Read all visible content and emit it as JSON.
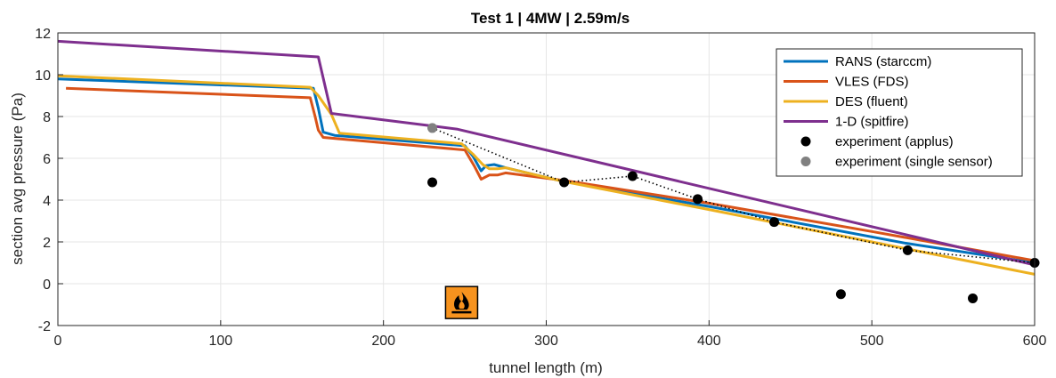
{
  "chart_data": {
    "type": "line",
    "title": "Test 1 | 4MW | 2.59m/s",
    "xlabel": "tunnel length (m)",
    "ylabel": "section avg pressure (Pa)",
    "xlim": [
      0,
      600
    ],
    "ylim": [
      -2,
      12
    ],
    "xticks": [
      "0",
      "100",
      "200",
      "300",
      "400",
      "500",
      "600"
    ],
    "yticks": [
      "-2",
      "0",
      "2",
      "4",
      "6",
      "8",
      "10",
      "12"
    ],
    "grid": true,
    "legend_position": "top-right",
    "fire_icon": {
      "x": 248,
      "y": -0.9,
      "icon": "fire-icon"
    },
    "series": [
      {
        "name": "RANS (starccm)",
        "kind": "line",
        "color": "#0072BD",
        "x": [
          0,
          157,
          160,
          163,
          170,
          250,
          255,
          260,
          263,
          268,
          275,
          310,
          400,
          520,
          600
        ],
        "y": [
          9.8,
          9.35,
          8.4,
          7.25,
          7.1,
          6.6,
          6.1,
          5.4,
          5.65,
          5.7,
          5.55,
          4.9,
          3.7,
          1.95,
          1.0
        ]
      },
      {
        "name": "VLES (FDS)",
        "kind": "line",
        "color": "#D95319",
        "x": [
          5,
          155,
          158,
          160,
          163,
          250,
          256,
          260,
          265,
          270,
          275,
          310,
          400,
          500,
          600
        ],
        "y": [
          9.35,
          8.9,
          8.0,
          7.35,
          7.0,
          6.4,
          5.6,
          5.0,
          5.2,
          5.2,
          5.3,
          4.95,
          3.85,
          2.5,
          1.1
        ]
      },
      {
        "name": "DES (fluent)",
        "kind": "line",
        "color": "#EDB120",
        "x": [
          0,
          155,
          160,
          168,
          173,
          248,
          255,
          261,
          265,
          270,
          275,
          310,
          400,
          500,
          600
        ],
        "y": [
          9.95,
          9.4,
          9.0,
          8.1,
          7.2,
          6.7,
          6.2,
          5.7,
          5.5,
          5.5,
          5.55,
          4.9,
          3.55,
          2.0,
          0.45
        ]
      },
      {
        "name": "1-D (spitfire)",
        "kind": "line",
        "color": "#7E2F8E",
        "x": [
          0,
          160,
          168,
          230,
          245,
          600
        ],
        "y": [
          11.6,
          10.85,
          8.15,
          7.55,
          7.4,
          0.9
        ]
      },
      {
        "name": "experiment (applus)",
        "kind": "scatter",
        "color": "#000000",
        "x": [
          230,
          311,
          353,
          393,
          440,
          481,
          522,
          562,
          600
        ],
        "y": [
          4.85,
          4.85,
          5.15,
          4.05,
          2.95,
          -0.5,
          1.6,
          -0.7,
          1.0
        ]
      },
      {
        "name": "experiment (single sensor)",
        "kind": "scatter",
        "color": "#808080",
        "x": [
          230
        ],
        "y": [
          7.45
        ]
      },
      {
        "name": "",
        "kind": "dotted",
        "color": "#000000",
        "x": [
          230,
          311,
          353,
          393,
          440,
          522,
          600
        ],
        "y": [
          7.45,
          4.85,
          5.15,
          4.05,
          2.95,
          1.6,
          1.0
        ]
      }
    ]
  }
}
